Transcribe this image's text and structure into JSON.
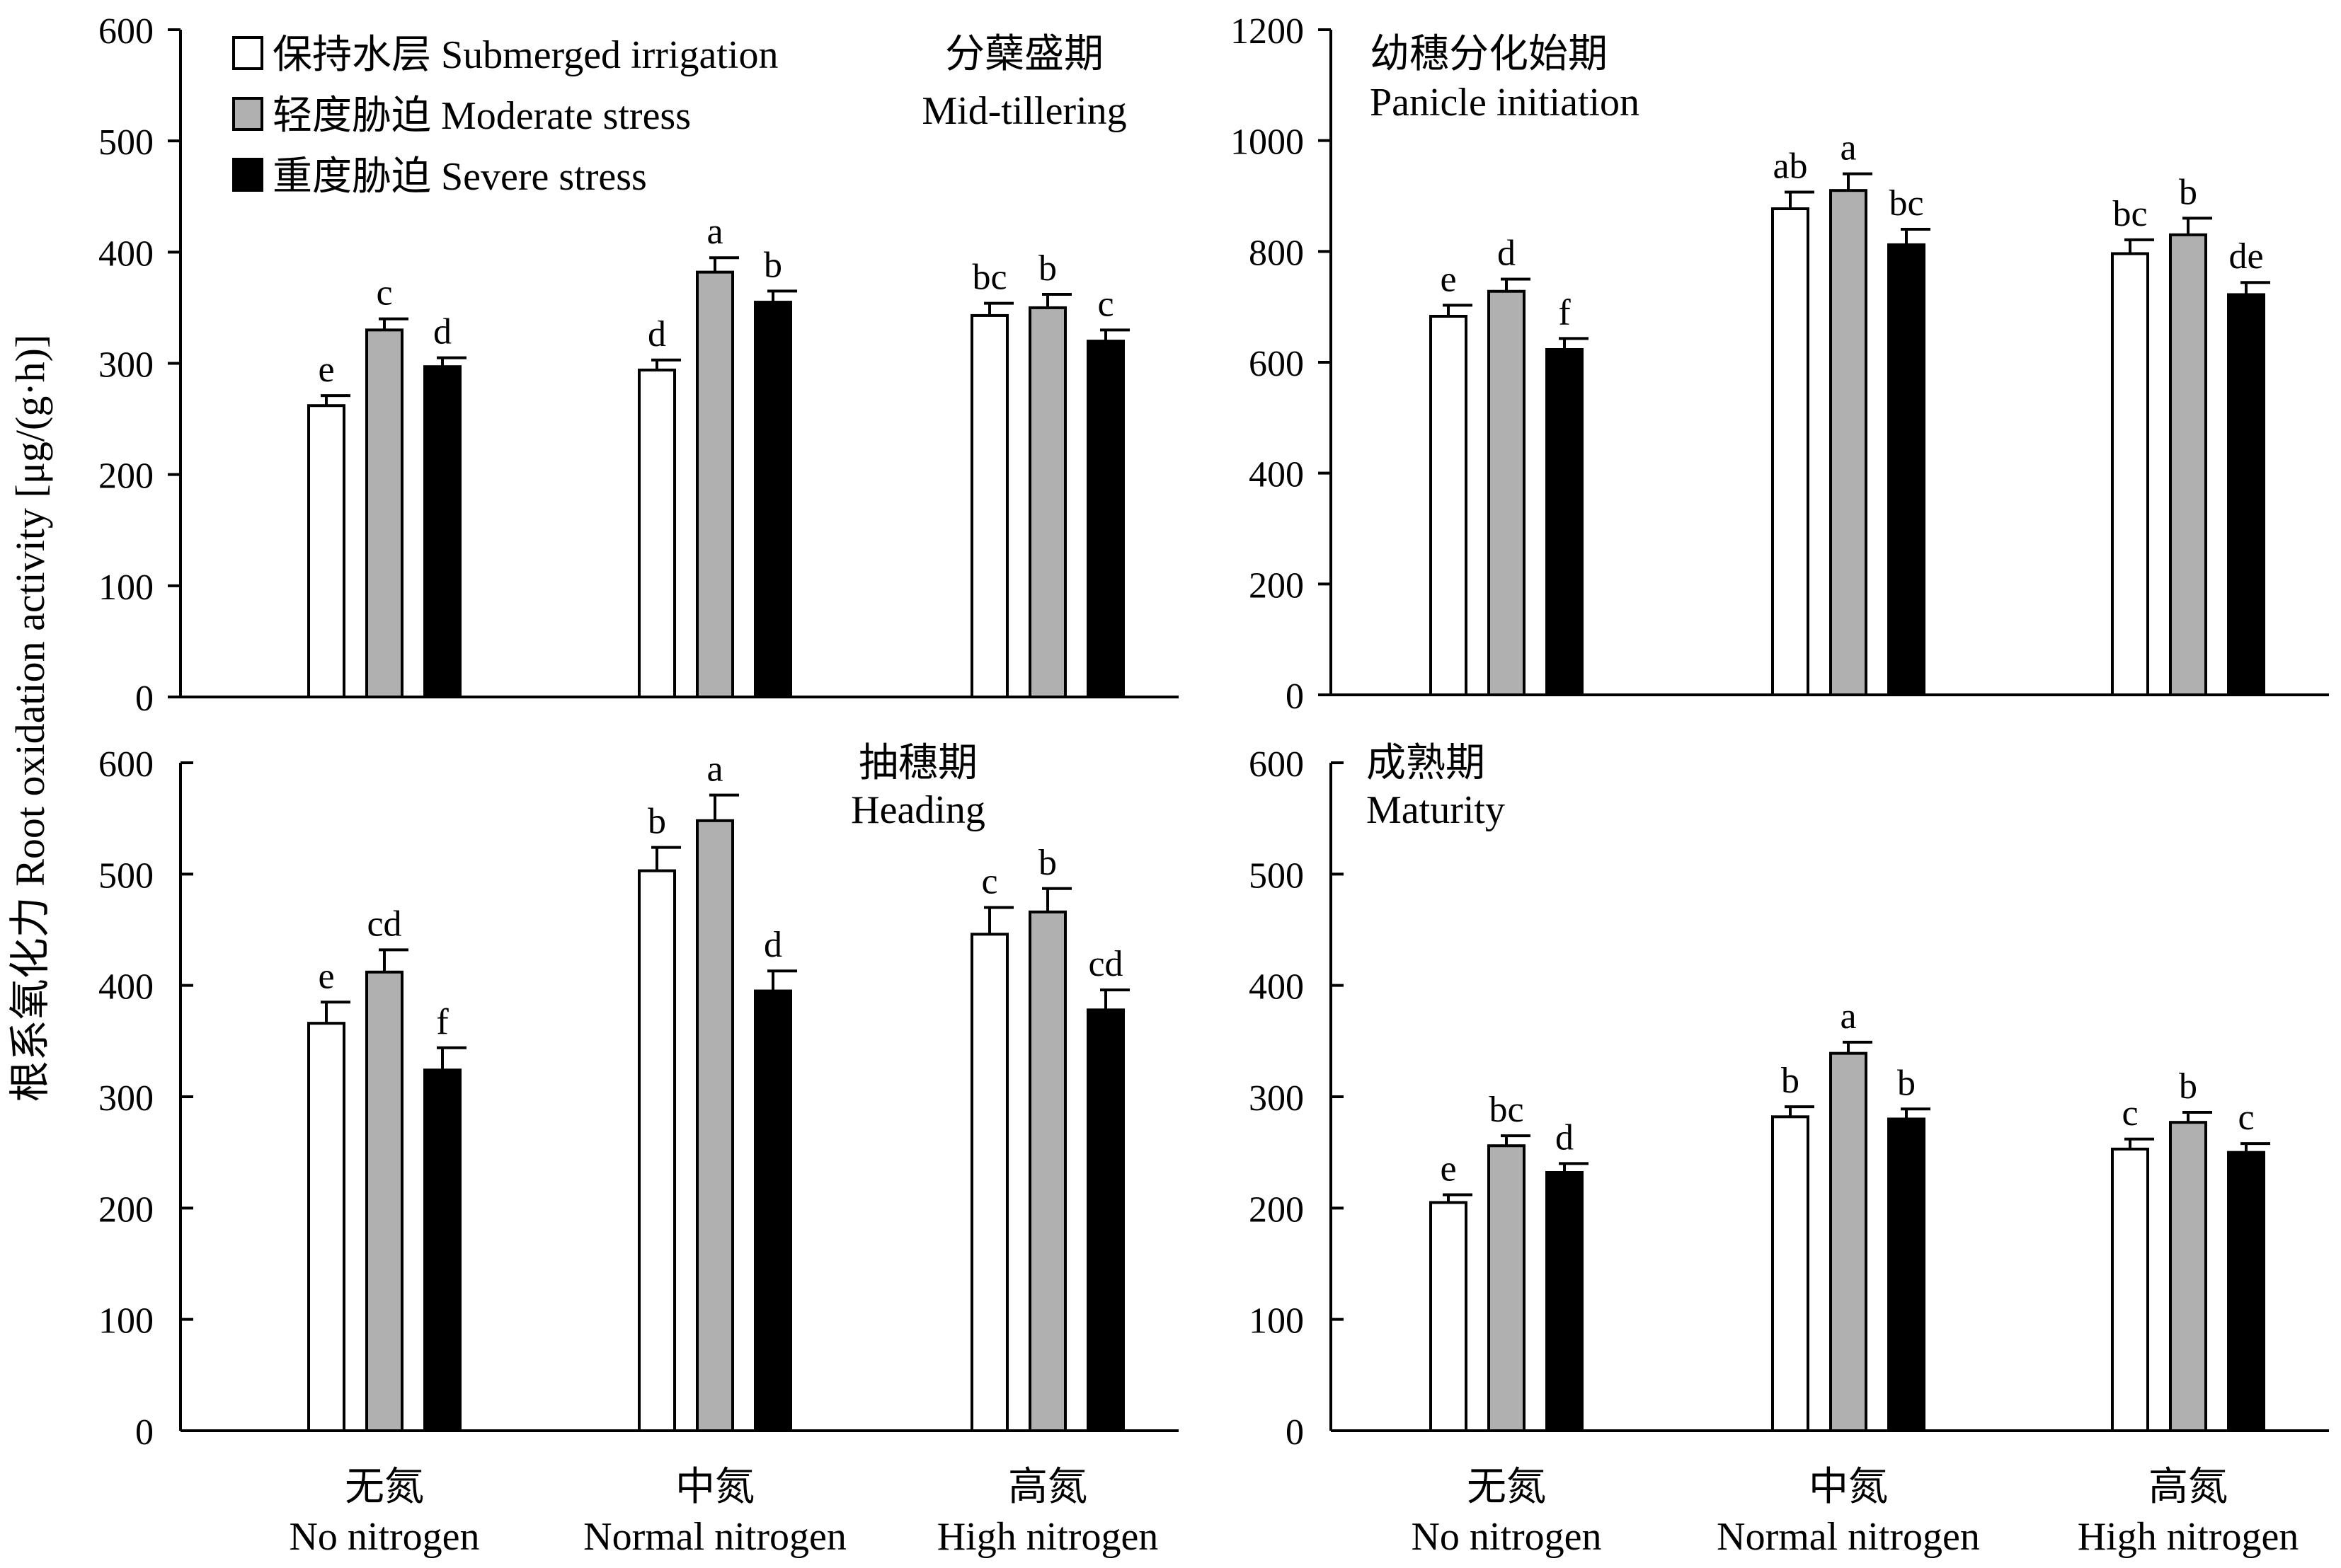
{
  "figure": {
    "y_axis_label": "根系氧化力 Root oxidation activity [μg/(g·h)]",
    "x_categories_zh": [
      "无氮",
      "中氮",
      "高氮"
    ],
    "x_categories_en": [
      "No nitrogen",
      "Normal nitrogen",
      "High nitrogen"
    ],
    "legend": [
      {
        "label": "保持水层 Submerged irrigation",
        "color": "#ffffff"
      },
      {
        "label": "轻度胁迫 Moderate stress",
        "color": "#b0b0b0"
      },
      {
        "label": "重度胁迫 Severe stress",
        "color": "#000000"
      }
    ]
  },
  "chart_data": [
    {
      "type": "bar",
      "title_zh": "分蘖盛期",
      "title_en": "Mid-tillering",
      "categories": [
        "无氮",
        "中氮",
        "高氮"
      ],
      "ylim": [
        0,
        600
      ],
      "yticks": [
        0,
        100,
        200,
        300,
        400,
        500,
        600
      ],
      "series": [
        {
          "name": "保持水层 Submerged irrigation",
          "values": [
            262,
            294,
            343
          ],
          "errors": [
            9,
            9,
            11
          ],
          "letters": [
            "e",
            "d",
            "bc"
          ]
        },
        {
          "name": "轻度胁迫 Moderate stress",
          "values": [
            330,
            382,
            350
          ],
          "errors": [
            10,
            13,
            12
          ],
          "letters": [
            "c",
            "a",
            "b"
          ]
        },
        {
          "name": "重度胁迫 Severe stress",
          "values": [
            297,
            355,
            320
          ],
          "errors": [
            8,
            10,
            10
          ],
          "letters": [
            "d",
            "b",
            "c"
          ]
        }
      ]
    },
    {
      "type": "bar",
      "title_zh": "幼穗分化始期",
      "title_en": "Panicle initiation",
      "categories": [
        "无氮",
        "中氮",
        "高氮"
      ],
      "ylim": [
        0,
        1200
      ],
      "yticks": [
        0,
        200,
        400,
        600,
        800,
        1000,
        1200
      ],
      "series": [
        {
          "name": "保持水层 Submerged irrigation",
          "values": [
            683,
            877,
            796
          ],
          "errors": [
            20,
            30,
            25
          ],
          "letters": [
            "e",
            "ab",
            "bc"
          ]
        },
        {
          "name": "轻度胁迫 Moderate stress",
          "values": [
            728,
            910,
            830
          ],
          "errors": [
            22,
            30,
            30
          ],
          "letters": [
            "d",
            "a",
            "b"
          ]
        },
        {
          "name": "重度胁迫 Severe stress",
          "values": [
            623,
            812,
            722
          ],
          "errors": [
            20,
            28,
            22
          ],
          "letters": [
            "f",
            "bc",
            "de"
          ]
        }
      ]
    },
    {
      "type": "bar",
      "title_zh": "抽穗期",
      "title_en": "Heading",
      "categories": [
        "无氮",
        "中氮",
        "高氮"
      ],
      "ylim": [
        0,
        600
      ],
      "yticks": [
        0,
        100,
        200,
        300,
        400,
        500,
        600
      ],
      "series": [
        {
          "name": "保持水层 Submerged irrigation",
          "values": [
            366,
            503,
            446
          ],
          "errors": [
            19,
            21,
            24
          ],
          "letters": [
            "e",
            "b",
            "c"
          ]
        },
        {
          "name": "轻度胁迫 Moderate stress",
          "values": [
            412,
            548,
            466
          ],
          "errors": [
            20,
            23,
            21
          ],
          "letters": [
            "cd",
            "a",
            "b"
          ]
        },
        {
          "name": "重度胁迫 Severe stress",
          "values": [
            324,
            395,
            378
          ],
          "errors": [
            20,
            18,
            18
          ],
          "letters": [
            "f",
            "d",
            "cd"
          ]
        }
      ]
    },
    {
      "type": "bar",
      "title_zh": "成熟期",
      "title_en": "Maturity",
      "categories": [
        "无氮",
        "中氮",
        "高氮"
      ],
      "ylim": [
        0,
        600
      ],
      "yticks": [
        0,
        100,
        200,
        300,
        400,
        500,
        600
      ],
      "series": [
        {
          "name": "保持水层 Submerged irrigation",
          "values": [
            205,
            282,
            253
          ],
          "errors": [
            7,
            9,
            9
          ],
          "letters": [
            "e",
            "b",
            "c"
          ]
        },
        {
          "name": "轻度胁迫 Moderate stress",
          "values": [
            256,
            339,
            277
          ],
          "errors": [
            9,
            10,
            9
          ],
          "letters": [
            "bc",
            "a",
            "b"
          ]
        },
        {
          "name": "重度胁迫 Severe stress",
          "values": [
            232,
            280,
            250
          ],
          "errors": [
            8,
            9,
            8
          ],
          "letters": [
            "d",
            "b",
            "c"
          ]
        }
      ]
    }
  ]
}
